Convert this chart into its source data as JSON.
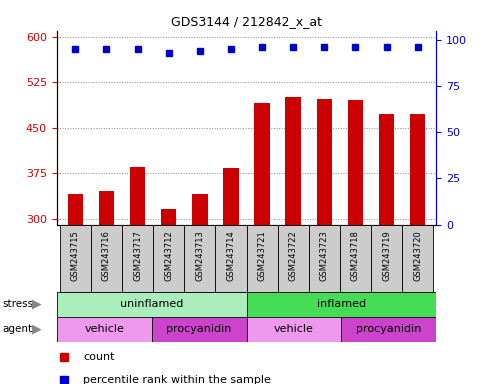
{
  "title": "GDS3144 / 212842_x_at",
  "samples": [
    "GSM243715",
    "GSM243716",
    "GSM243717",
    "GSM243712",
    "GSM243713",
    "GSM243714",
    "GSM243721",
    "GSM243722",
    "GSM243723",
    "GSM243718",
    "GSM243719",
    "GSM243720"
  ],
  "counts": [
    340,
    345,
    385,
    315,
    340,
    383,
    490,
    500,
    497,
    495,
    472,
    472
  ],
  "percentile_ranks": [
    95,
    95,
    95,
    93,
    94,
    95,
    96,
    96,
    96,
    96,
    96,
    96
  ],
  "bar_color": "#cc0000",
  "dot_color": "#0000cc",
  "ylim_left": [
    290,
    610
  ],
  "ylim_right": [
    0,
    105
  ],
  "yticks_left": [
    300,
    375,
    450,
    525,
    600
  ],
  "yticks_right": [
    0,
    25,
    50,
    75,
    100
  ],
  "stress_labels": [
    {
      "label": "uninflamed",
      "start": 0,
      "end": 6,
      "color": "#aaeebb"
    },
    {
      "label": "inflamed",
      "start": 6,
      "end": 12,
      "color": "#44dd55"
    }
  ],
  "agent_labels": [
    {
      "label": "vehicle",
      "start": 0,
      "end": 3,
      "color": "#ee99ee"
    },
    {
      "label": "procyanidin",
      "start": 3,
      "end": 6,
      "color": "#cc44cc"
    },
    {
      "label": "vehicle",
      "start": 6,
      "end": 9,
      "color": "#ee99ee"
    },
    {
      "label": "procyanidin",
      "start": 9,
      "end": 12,
      "color": "#cc44cc"
    }
  ],
  "bg_color": "#ffffff",
  "grid_color": "#888888",
  "label_bg_color": "#cccccc"
}
